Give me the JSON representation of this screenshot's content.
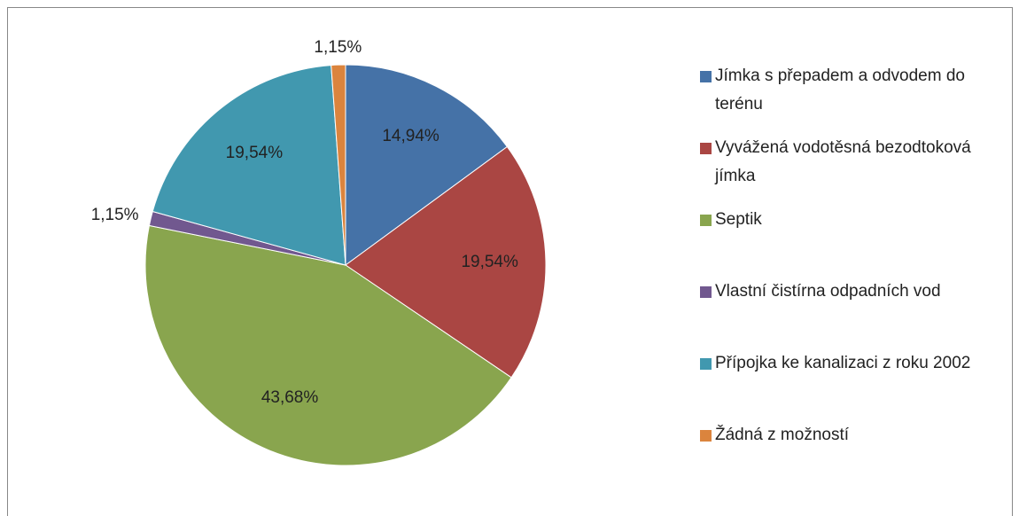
{
  "chart_data": {
    "type": "pie",
    "categories": [
      "Jímka s přepadem a odvodem do terénu",
      "Vyvážená vodotěsná bezodtoková jímka",
      "Septik",
      "Vlastní čistírna odpadních vod",
      "Přípojka ke kanalizaci z roku 2002",
      "Žádná z možností"
    ],
    "values": [
      14.94,
      19.54,
      43.68,
      1.15,
      19.54,
      1.15
    ],
    "value_labels": [
      "14,94%",
      "19,54%",
      "43,68%",
      "1,15%",
      "19,54%",
      "1,15%"
    ],
    "colors": [
      "#4572a7",
      "#aa4643",
      "#89a54e",
      "#71588f",
      "#4198af",
      "#db843d"
    ],
    "legend": "right"
  }
}
